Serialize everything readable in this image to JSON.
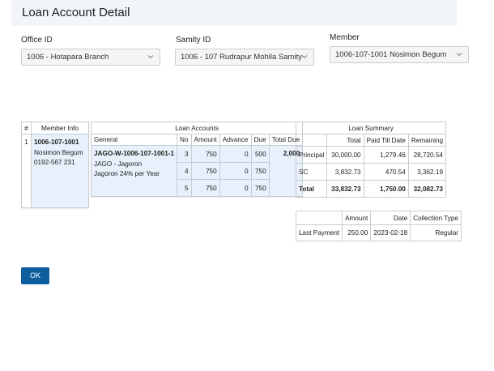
{
  "page": {
    "title": "Loan Account Detail"
  },
  "filters": {
    "office": {
      "label": "Office ID",
      "value": "1006 - Hotapara Branch"
    },
    "samity": {
      "label": "Samity ID",
      "value": "1006 - 107 Rudrapur Mohila Samity"
    },
    "member": {
      "label": "Member",
      "value": "1006-107-1001 Nosimon Begum"
    }
  },
  "member_table": {
    "headers": [
      "#",
      "Member Info"
    ],
    "row": {
      "num": "1",
      "id": "1006-107-1001",
      "name": "Nosimon Begum",
      "phone": "0192-567 231"
    }
  },
  "loan_table": {
    "title": "Loan Accounts",
    "headers": [
      "General",
      "No",
      "Amount",
      "Advance",
      "Due",
      "Total Due"
    ],
    "account": {
      "number": "JAGO-W-1006-107-1001-1",
      "product": "JAGO - Jagoron",
      "rate": "Jagoron 24% per Year"
    },
    "total_due": "2,000",
    "rows": [
      {
        "no": "3",
        "amount": "750",
        "advance": "0",
        "due": "500"
      },
      {
        "no": "4",
        "amount": "750",
        "advance": "0",
        "due": "750"
      },
      {
        "no": "5",
        "amount": "750",
        "advance": "0",
        "due": "750"
      }
    ]
  },
  "summary_table": {
    "title": "Loan Summary",
    "headers": [
      "",
      "Total",
      "Paid Till Date",
      "Remaining"
    ],
    "rows": [
      {
        "label": "Principal",
        "total": "30,000.00",
        "paid": "1,279.46",
        "remaining": "28,720.54"
      },
      {
        "label": "SC",
        "total": "3,832.73",
        "paid": "470.54",
        "remaining": "3,362.19"
      },
      {
        "label": "Total",
        "total": "33,832.73",
        "paid": "1,750.00",
        "remaining": "32,082.73"
      }
    ]
  },
  "payment_table": {
    "headers": [
      "",
      "Amount",
      "Date",
      "Collection Type"
    ],
    "row": {
      "label": "Last Payment",
      "amount": "250.00",
      "date": "2023-02-18",
      "type": "Regular"
    }
  },
  "actions": {
    "ok_label": "OK"
  }
}
